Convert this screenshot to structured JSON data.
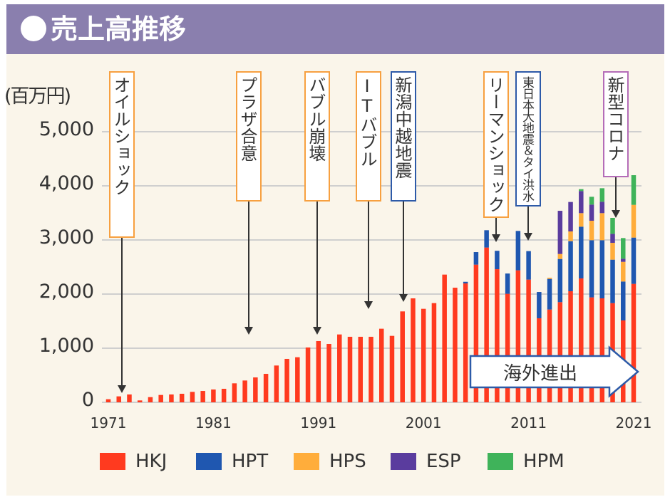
{
  "title": "売上高推移",
  "chart_data": {
    "type": "bar",
    "stacked": true,
    "title": "売上高推移",
    "ylabel": "(百万円)",
    "xlabel": "",
    "ylim": [
      0,
      5000
    ],
    "yticks": [
      "0",
      "1,000",
      "2,000",
      "3,000",
      "4,000",
      "5,000"
    ],
    "ytick_values": [
      0,
      1000,
      2000,
      3000,
      4000,
      5000
    ],
    "xticks": [
      "1971",
      "1981",
      "1991",
      "2001",
      "2011",
      "2021"
    ],
    "grid": true,
    "legend_position": "bottom",
    "categories": [
      1971,
      1972,
      1973,
      1974,
      1975,
      1976,
      1977,
      1978,
      1979,
      1980,
      1981,
      1982,
      1983,
      1984,
      1985,
      1986,
      1987,
      1988,
      1989,
      1990,
      1991,
      1992,
      1993,
      1994,
      1995,
      1996,
      1997,
      1998,
      1999,
      2000,
      2001,
      2002,
      2003,
      2004,
      2005,
      2006,
      2007,
      2008,
      2009,
      2010,
      2011,
      2012,
      2013,
      2014,
      2015,
      2016,
      2017,
      2018,
      2019,
      2020,
      2021
    ],
    "series": [
      {
        "name": "HKJ",
        "color": "#ff3a1f",
        "values": [
          57,
          110,
          145,
          35,
          96,
          136,
          145,
          158,
          193,
          210,
          237,
          250,
          351,
          403,
          460,
          526,
          680,
          803,
          833,
          1013,
          1132,
          1079,
          1254,
          1211,
          1211,
          1211,
          1360,
          1228,
          1680,
          1921,
          1728,
          1833,
          2360,
          2118,
          2197,
          2544,
          2860,
          2460,
          2005,
          2439,
          2268,
          1553,
          1715,
          1851,
          2053,
          2289,
          1939,
          1921,
          1833,
          1513,
          2189
        ]
      },
      {
        "name": "HPT",
        "color": "#1f57b0",
        "values": [
          0,
          0,
          0,
          0,
          0,
          0,
          0,
          0,
          0,
          0,
          0,
          0,
          0,
          0,
          0,
          0,
          0,
          0,
          0,
          0,
          0,
          0,
          0,
          0,
          0,
          0,
          0,
          0,
          0,
          0,
          0,
          0,
          0,
          0,
          30,
          232,
          320,
          340,
          375,
          728,
          526,
          486,
          566,
          798,
          925,
          957,
          1057,
          1075,
          803,
          719,
          855
        ]
      },
      {
        "name": "HPS",
        "color": "#ffad3b",
        "values": [
          0,
          0,
          0,
          0,
          0,
          0,
          0,
          0,
          0,
          0,
          0,
          0,
          0,
          0,
          0,
          0,
          0,
          0,
          0,
          0,
          0,
          0,
          0,
          0,
          0,
          0,
          0,
          0,
          0,
          0,
          0,
          0,
          0,
          0,
          0,
          0,
          0,
          0,
          0,
          0,
          0,
          0,
          22,
          92,
          180,
          250,
          359,
          500,
          311,
          364,
          605
        ]
      },
      {
        "name": "ESP",
        "color": "#5a3c9e",
        "values": [
          0,
          0,
          0,
          0,
          0,
          0,
          0,
          0,
          0,
          0,
          0,
          0,
          0,
          0,
          0,
          0,
          0,
          0,
          0,
          0,
          0,
          0,
          0,
          0,
          0,
          0,
          0,
          0,
          0,
          0,
          0,
          0,
          0,
          0,
          0,
          0,
          0,
          0,
          0,
          0,
          0,
          0,
          0,
          798,
          544,
          408,
          299,
          210,
          167,
          58,
          0
        ]
      },
      {
        "name": "HPM",
        "color": "#3fb35a",
        "values": [
          0,
          0,
          0,
          0,
          0,
          0,
          0,
          0,
          0,
          0,
          0,
          0,
          0,
          0,
          0,
          0,
          0,
          0,
          0,
          0,
          0,
          0,
          0,
          0,
          0,
          0,
          0,
          0,
          0,
          0,
          0,
          0,
          0,
          0,
          0,
          0,
          0,
          0,
          0,
          0,
          0,
          0,
          0,
          0,
          0,
          35,
          144,
          250,
          294,
          381,
          548
        ]
      }
    ],
    "annotations": [
      {
        "label": "オイルショック",
        "year": 1973
      },
      {
        "label": "プラザ合意",
        "year": 1985
      },
      {
        "label": "バブル崩壊",
        "year": 1991
      },
      {
        "label": "ITバブル",
        "year": 1996
      },
      {
        "label": "新潟中越地震",
        "year": 2000
      },
      {
        "label": "リーマンショック",
        "year": 2008
      },
      {
        "label": "東日本大地震＆タイ洪水",
        "year": 2011
      },
      {
        "label": "新型コロナ",
        "year": 2019
      }
    ],
    "overseas_label": "海外進出"
  }
}
